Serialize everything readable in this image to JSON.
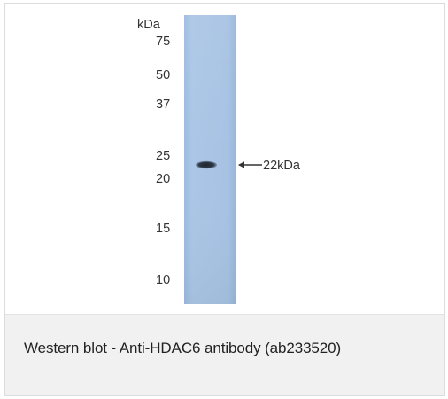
{
  "figure": {
    "unit_label": "kDa",
    "markers": [
      "75",
      "50",
      "37",
      "25",
      "20",
      "15",
      "10"
    ],
    "band_annotation": "22kDa",
    "lane_color": "#a9c4e4",
    "band_color": "#2a3440"
  },
  "caption": {
    "text": "Western blot - Anti-HDAC6 antibody (ab233520)"
  }
}
